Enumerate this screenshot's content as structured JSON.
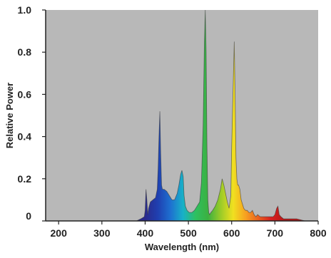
{
  "chart_data": {
    "type": "area",
    "title": "",
    "xlabel": "Wavelength (nm)",
    "ylabel": "Relative Power",
    "xlim": [
      170,
      800
    ],
    "ylim": [
      0,
      1.0
    ],
    "x_ticks": [
      {
        "value": 200,
        "label": "200"
      },
      {
        "value": 300,
        "label": "300"
      },
      {
        "value": 400,
        "label": "400"
      },
      {
        "value": 500,
        "label": "500"
      },
      {
        "value": 600,
        "label": "600"
      },
      {
        "value": 700,
        "label": "700"
      },
      {
        "value": 800,
        "label": "800"
      }
    ],
    "y_ticks": [
      {
        "value": 0,
        "label": "0"
      },
      {
        "value": 0.2,
        "label": "0.2"
      },
      {
        "value": 0.4,
        "label": "0.4"
      },
      {
        "value": 0.6,
        "label": "0.6"
      },
      {
        "value": 0.8,
        "label": "0.8"
      },
      {
        "value": 1.0,
        "label": "1.0"
      }
    ],
    "grid": false,
    "plot_background": "#b8b8b8",
    "fill": "visible-spectrum gradient",
    "spectrum_colors": [
      "#2a2a8c",
      "#1f3fb0",
      "#1e6fd0",
      "#18b0c8",
      "#2ec060",
      "#3cb040",
      "#9acb28",
      "#f0e020",
      "#f7a020",
      "#e86020",
      "#d82020",
      "#b81818"
    ],
    "series": [
      {
        "x": [
          380,
          390,
          398,
          400,
          402,
          404,
          406,
          408,
          412,
          418,
          424,
          428,
          430,
          432,
          434,
          436,
          438,
          440,
          444,
          450,
          456,
          462,
          468,
          474,
          478,
          482,
          485,
          488,
          490,
          493,
          497,
          502,
          508,
          514,
          520,
          526,
          530,
          534,
          537,
          539,
          541,
          543,
          545,
          547,
          549,
          552,
          556,
          562,
          568,
          574,
          578,
          582,
          586,
          590,
          594,
          598,
          600,
          603,
          606,
          608,
          610,
          612,
          614,
          616,
          619,
          622,
          625,
          628,
          632,
          636,
          640,
          644,
          648,
          652,
          656,
          660,
          666,
          672,
          678,
          684,
          690,
          696,
          700,
          704,
          707,
          710,
          714,
          720,
          730,
          740,
          750,
          760,
          770,
          780
        ],
        "y": [
          0.0,
          0.01,
          0.02,
          0.05,
          0.15,
          0.1,
          0.03,
          0.06,
          0.09,
          0.1,
          0.11,
          0.15,
          0.25,
          0.4,
          0.52,
          0.32,
          0.17,
          0.15,
          0.15,
          0.14,
          0.12,
          0.1,
          0.1,
          0.13,
          0.17,
          0.22,
          0.24,
          0.21,
          0.12,
          0.07,
          0.05,
          0.04,
          0.04,
          0.05,
          0.07,
          0.09,
          0.18,
          0.45,
          0.85,
          1.0,
          0.8,
          0.35,
          0.1,
          0.04,
          0.03,
          0.04,
          0.05,
          0.07,
          0.1,
          0.15,
          0.2,
          0.17,
          0.13,
          0.09,
          0.06,
          0.12,
          0.35,
          0.6,
          0.85,
          0.6,
          0.3,
          0.2,
          0.17,
          0.17,
          0.15,
          0.1,
          0.08,
          0.06,
          0.05,
          0.05,
          0.04,
          0.04,
          0.05,
          0.03,
          0.02,
          0.03,
          0.02,
          0.02,
          0.02,
          0.02,
          0.02,
          0.02,
          0.03,
          0.06,
          0.07,
          0.03,
          0.02,
          0.01,
          0.01,
          0.01,
          0.01,
          0.005,
          0.0,
          0.0
        ]
      }
    ]
  }
}
